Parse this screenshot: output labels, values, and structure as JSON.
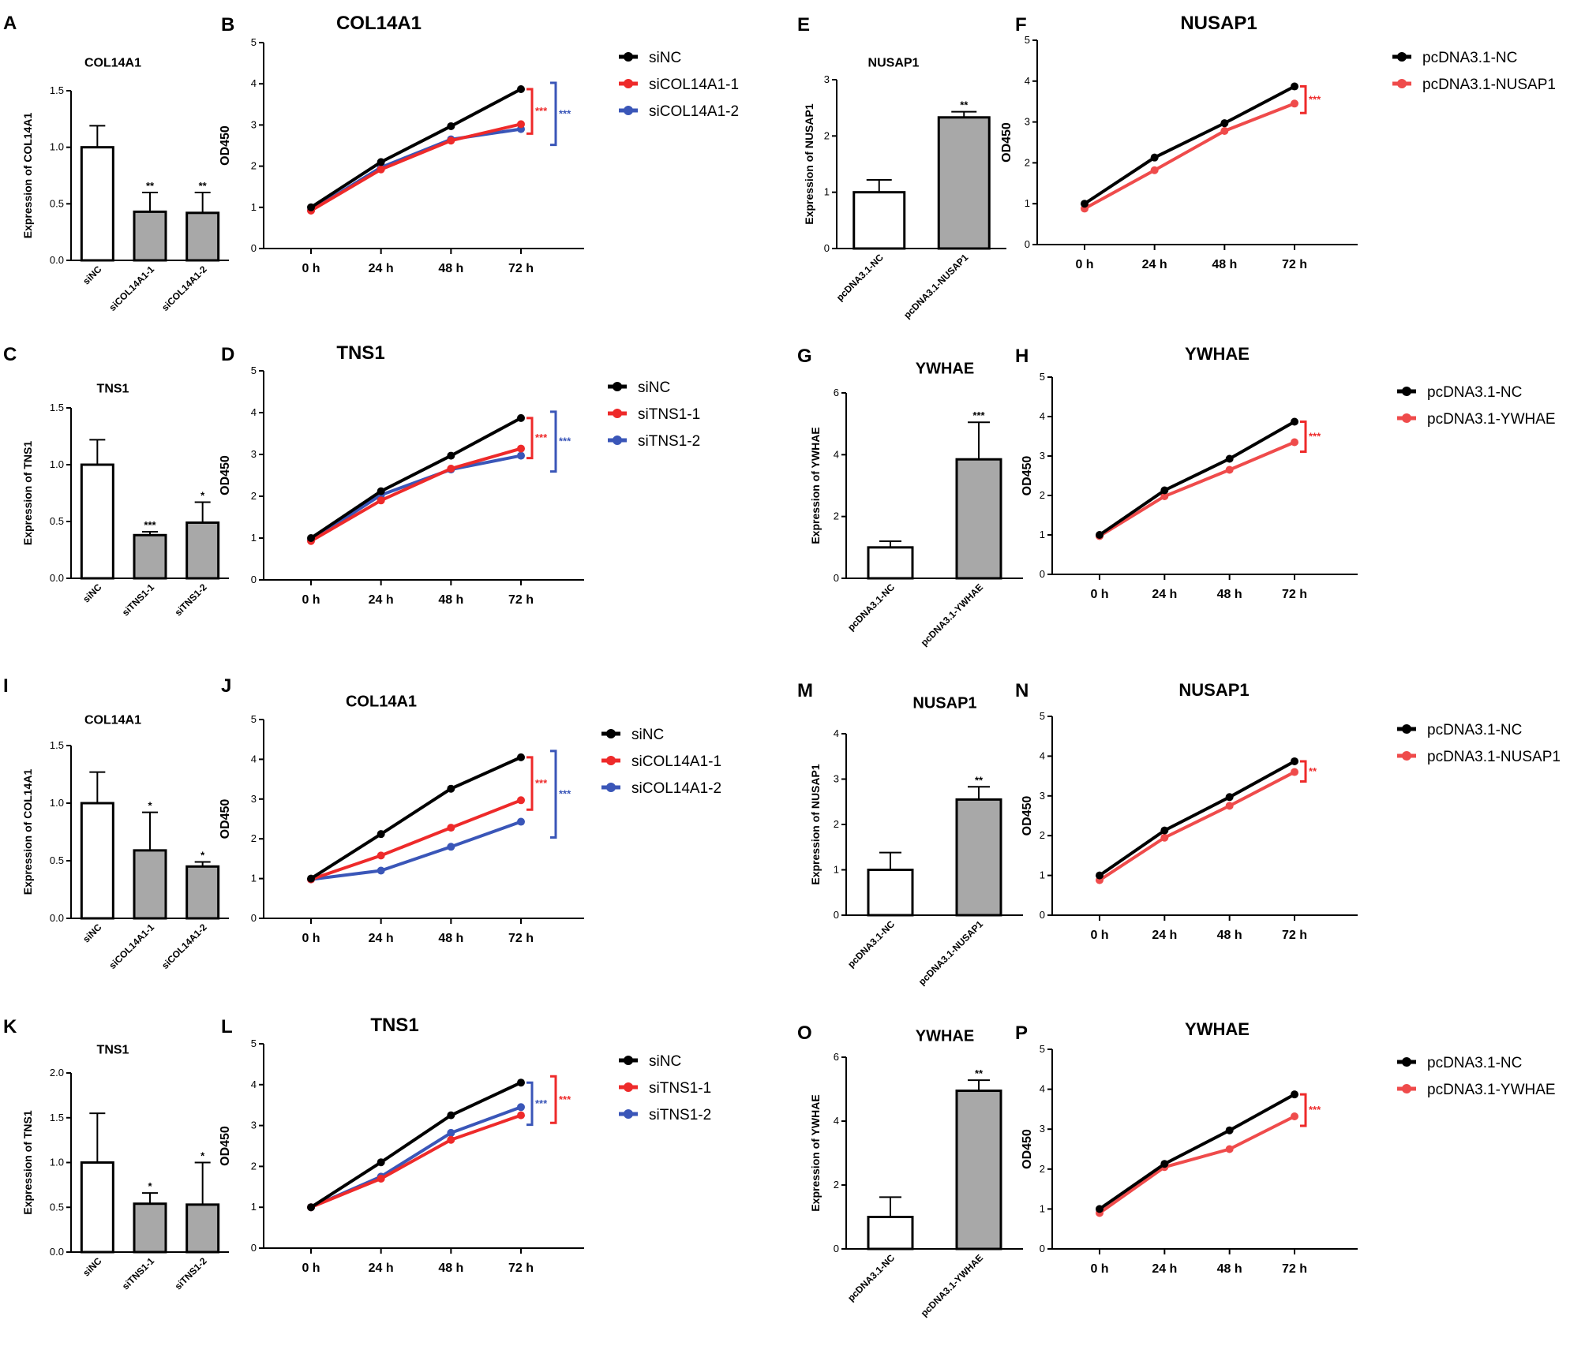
{
  "colors": {
    "siNC": "#000000",
    "si1": "#ee2a2a",
    "si2": "#3a56b8",
    "pcNC": "#000000",
    "pcOE": "#ef4b4b"
  },
  "chart_data": [
    {
      "id": "A",
      "type": "bar",
      "title": "COL14A1",
      "ylabel": "Expression of COL14A1",
      "categories": [
        "siNC",
        "siCOL14A1-1",
        "siCOL14A1-2"
      ],
      "values": [
        1.0,
        0.43,
        0.42
      ],
      "errors": [
        0.19,
        0.17,
        0.18
      ],
      "sig": [
        "",
        "**",
        "**"
      ],
      "fill": [
        "#ffffff",
        "#a8a8a8",
        "#a8a8a8"
      ],
      "ylim": [
        0,
        1.5
      ],
      "yticks": [
        "0.0",
        "0.5",
        "1.0",
        "1.5"
      ]
    },
    {
      "id": "B",
      "type": "line",
      "title": "COL14A1",
      "ylabel": "OD450",
      "x": [
        "0 h",
        "24 h",
        "48 h",
        "72 h"
      ],
      "ylim": [
        0,
        5
      ],
      "yticks": [
        "0",
        "1",
        "2",
        "3",
        "4",
        "5"
      ],
      "series": [
        {
          "name": "siNC",
          "values": [
            1.0,
            2.1,
            2.97,
            3.87
          ],
          "color": "#000000"
        },
        {
          "name": "siCOL14A1-1",
          "values": [
            0.92,
            1.92,
            2.62,
            3.02
          ],
          "color": "#ee2a2a"
        },
        {
          "name": "siCOL14A1-2",
          "values": [
            0.93,
            1.97,
            2.65,
            2.9
          ],
          "color": "#3a56b8"
        }
      ],
      "annotations": [
        {
          "text": "***",
          "color": "#ee2a2a"
        },
        {
          "text": "***",
          "color": "#3a56b8"
        }
      ]
    },
    {
      "id": "C",
      "type": "bar",
      "title": "TNS1",
      "ylabel": "Expression of TNS1",
      "categories": [
        "siNC",
        "siTNS1-1",
        "siTNS1-2"
      ],
      "values": [
        1.0,
        0.38,
        0.49
      ],
      "errors": [
        0.22,
        0.03,
        0.18
      ],
      "sig": [
        "",
        "***",
        "*"
      ],
      "fill": [
        "#ffffff",
        "#a8a8a8",
        "#a8a8a8"
      ],
      "ylim": [
        0,
        1.5
      ],
      "yticks": [
        "0.0",
        "0.5",
        "1.0",
        "1.5"
      ]
    },
    {
      "id": "D",
      "type": "line",
      "title": "TNS1",
      "ylabel": "OD450",
      "x": [
        "0 h",
        "24 h",
        "48 h",
        "72 h"
      ],
      "ylim": [
        0,
        5
      ],
      "yticks": [
        "0",
        "1",
        "2",
        "3",
        "4",
        "5"
      ],
      "series": [
        {
          "name": "siNC",
          "values": [
            1.0,
            2.12,
            2.97,
            3.87
          ],
          "color": "#000000"
        },
        {
          "name": "siTNS1-1",
          "values": [
            0.93,
            1.9,
            2.66,
            3.14
          ],
          "color": "#ee2a2a"
        },
        {
          "name": "siTNS1-2",
          "values": [
            0.95,
            2.03,
            2.64,
            2.97
          ],
          "color": "#3a56b8"
        }
      ],
      "annotations": [
        {
          "text": "***",
          "color": "#ee2a2a"
        },
        {
          "text": "***",
          "color": "#3a56b8"
        }
      ]
    },
    {
      "id": "E",
      "type": "bar",
      "title": "NUSAP1",
      "ylabel": "Expression of NUSAP1",
      "categories": [
        "pcDNA3.1-NC",
        "pcDNA3.1-NUSAP1"
      ],
      "values": [
        1.0,
        2.33
      ],
      "errors": [
        0.22,
        0.1
      ],
      "sig": [
        "",
        "**"
      ],
      "fill": [
        "#ffffff",
        "#a8a8a8"
      ],
      "ylim": [
        0,
        3
      ],
      "yticks": [
        "0",
        "1",
        "2",
        "3"
      ]
    },
    {
      "id": "F",
      "type": "line",
      "title": "NUSAP1",
      "ylabel": "OD450",
      "x": [
        "0 h",
        "24 h",
        "48 h",
        "72 h"
      ],
      "ylim": [
        0,
        5
      ],
      "yticks": [
        "0",
        "1",
        "2",
        "3",
        "4",
        "5"
      ],
      "series": [
        {
          "name": "pcDNA3.1-NC",
          "values": [
            1.0,
            2.13,
            2.97,
            3.87
          ],
          "color": "#000000"
        },
        {
          "name": "pcDNA3.1-NUSAP1",
          "values": [
            0.88,
            1.82,
            2.78,
            3.45
          ],
          "color": "#ef4b4b"
        }
      ],
      "annotations": [
        {
          "text": "***",
          "color": "#ee2a2a"
        }
      ]
    },
    {
      "id": "G",
      "type": "bar",
      "title": "YWHAE",
      "ylabel": "Expression of YWHAE",
      "categories": [
        "pcDNA3.1-NC",
        "pcDNA3.1-YWHAE"
      ],
      "values": [
        1.0,
        3.85
      ],
      "errors": [
        0.2,
        1.2
      ],
      "sig": [
        "",
        "***"
      ],
      "fill": [
        "#ffffff",
        "#a8a8a8"
      ],
      "ylim": [
        0,
        6
      ],
      "yticks": [
        "0",
        "2",
        "4",
        "6"
      ]
    },
    {
      "id": "H",
      "type": "line",
      "title": "YWHAE",
      "ylabel": "OD450",
      "x": [
        "0 h",
        "24 h",
        "48 h",
        "72 h"
      ],
      "ylim": [
        0,
        5
      ],
      "yticks": [
        "0",
        "1",
        "2",
        "3",
        "4",
        "5"
      ],
      "series": [
        {
          "name": "pcDNA3.1-NC",
          "values": [
            1.0,
            2.13,
            2.93,
            3.87
          ],
          "color": "#000000"
        },
        {
          "name": "pcDNA3.1-YWHAE",
          "values": [
            0.97,
            1.98,
            2.65,
            3.35
          ],
          "color": "#ef4b4b"
        }
      ],
      "annotations": [
        {
          "text": "***",
          "color": "#ee2a2a"
        }
      ]
    },
    {
      "id": "I",
      "type": "bar",
      "title": "COL14A1",
      "ylabel": "Expression of COL14A1",
      "categories": [
        "siNC",
        "siCOL14A1-1",
        "siCOL14A1-2"
      ],
      "values": [
        1.0,
        0.59,
        0.45
      ],
      "errors": [
        0.27,
        0.33,
        0.04
      ],
      "sig": [
        "",
        "*",
        "*"
      ],
      "fill": [
        "#ffffff",
        "#a8a8a8",
        "#a8a8a8"
      ],
      "ylim": [
        0,
        1.5
      ],
      "yticks": [
        "0.0",
        "0.5",
        "1.0",
        "1.5"
      ]
    },
    {
      "id": "J",
      "type": "line",
      "title": "COL14A1",
      "ylabel": "OD450",
      "x": [
        "0 h",
        "24 h",
        "48 h",
        "72 h"
      ],
      "ylim": [
        0,
        5
      ],
      "yticks": [
        "0",
        "1",
        "2",
        "3",
        "4",
        "5"
      ],
      "series": [
        {
          "name": "siNC",
          "values": [
            1.0,
            2.12,
            3.26,
            4.05
          ],
          "color": "#000000"
        },
        {
          "name": "siCOL14A1-1",
          "values": [
            0.98,
            1.58,
            2.28,
            2.97
          ],
          "color": "#ee2a2a"
        },
        {
          "name": "siCOL14A1-2",
          "values": [
            0.98,
            1.2,
            1.8,
            2.43
          ],
          "color": "#3a56b8"
        }
      ],
      "annotations": [
        {
          "text": "***",
          "color": "#ee2a2a"
        },
        {
          "text": "***",
          "color": "#3a56b8"
        }
      ]
    },
    {
      "id": "K",
      "type": "bar",
      "title": "TNS1",
      "ylabel": "Expression of TNS1",
      "categories": [
        "siNC",
        "siTNS1-1",
        "siTNS1-2"
      ],
      "values": [
        1.0,
        0.54,
        0.53
      ],
      "errors": [
        0.55,
        0.12,
        0.47
      ],
      "sig": [
        "",
        "*",
        "*"
      ],
      "fill": [
        "#ffffff",
        "#a8a8a8",
        "#a8a8a8"
      ],
      "ylim": [
        0,
        2.0
      ],
      "yticks": [
        "0.0",
        "0.5",
        "1.0",
        "1.5",
        "2.0"
      ]
    },
    {
      "id": "L",
      "type": "line",
      "title": "TNS1",
      "ylabel": "OD450",
      "x": [
        "0 h",
        "24 h",
        "48 h",
        "72 h"
      ],
      "ylim": [
        0,
        5
      ],
      "yticks": [
        "0",
        "1",
        "2",
        "3",
        "4",
        "5"
      ],
      "series": [
        {
          "name": "siNC",
          "values": [
            1.0,
            2.1,
            3.25,
            4.05
          ],
          "color": "#000000"
        },
        {
          "name": "siTNS1-1",
          "values": [
            1.0,
            1.7,
            2.65,
            3.25
          ],
          "color": "#ee2a2a"
        },
        {
          "name": "siTNS1-2",
          "values": [
            1.0,
            1.75,
            2.82,
            3.45
          ],
          "color": "#3a56b8"
        }
      ],
      "annotations": [
        {
          "text": "***",
          "color": "#3a56b8"
        },
        {
          "text": "***",
          "color": "#ee2a2a"
        }
      ]
    },
    {
      "id": "M",
      "type": "bar",
      "title": "NUSAP1",
      "ylabel": "Expression of NUSAP1",
      "categories": [
        "pcDNA3.1-NC",
        "pcDNA3.1-NUSAP1"
      ],
      "values": [
        1.0,
        2.55
      ],
      "errors": [
        0.38,
        0.28
      ],
      "sig": [
        "",
        "**"
      ],
      "fill": [
        "#ffffff",
        "#a8a8a8"
      ],
      "ylim": [
        0,
        4
      ],
      "yticks": [
        "0",
        "1",
        "2",
        "3",
        "4"
      ]
    },
    {
      "id": "N",
      "type": "line",
      "title": "NUSAP1",
      "ylabel": "OD450",
      "x": [
        "0 h",
        "24 h",
        "48 h",
        "72 h"
      ],
      "ylim": [
        0,
        5
      ],
      "yticks": [
        "0",
        "1",
        "2",
        "3",
        "4",
        "5"
      ],
      "series": [
        {
          "name": "pcDNA3.1-NC",
          "values": [
            1.0,
            2.13,
            2.97,
            3.87
          ],
          "color": "#000000"
        },
        {
          "name": "pcDNA3.1-NUSAP1",
          "values": [
            0.88,
            1.95,
            2.75,
            3.6
          ],
          "color": "#ef4b4b"
        }
      ],
      "annotations": [
        {
          "text": "**",
          "color": "#ee2a2a"
        }
      ]
    },
    {
      "id": "O",
      "type": "bar",
      "title": "YWHAE",
      "ylabel": "Expression of YWHAE",
      "categories": [
        "pcDNA3.1-NC",
        "pcDNA3.1-YWHAE"
      ],
      "values": [
        1.0,
        4.95
      ],
      "errors": [
        0.62,
        0.33
      ],
      "sig": [
        "",
        "**"
      ],
      "fill": [
        "#ffffff",
        "#a8a8a8"
      ],
      "ylim": [
        0,
        6
      ],
      "yticks": [
        "0",
        "2",
        "4",
        "6"
      ]
    },
    {
      "id": "P",
      "type": "line",
      "title": "YWHAE",
      "ylabel": "OD450",
      "x": [
        "0 h",
        "24 h",
        "48 h",
        "72 h"
      ],
      "ylim": [
        0,
        5
      ],
      "yticks": [
        "0",
        "1",
        "2",
        "3",
        "4",
        "5"
      ],
      "series": [
        {
          "name": "pcDNA3.1-NC",
          "values": [
            1.0,
            2.13,
            2.97,
            3.87
          ],
          "color": "#000000"
        },
        {
          "name": "pcDNA3.1-YWHAE",
          "values": [
            0.9,
            2.05,
            2.5,
            3.32
          ],
          "color": "#ef4b4b"
        }
      ],
      "annotations": [
        {
          "text": "***",
          "color": "#ee2a2a"
        }
      ]
    }
  ]
}
